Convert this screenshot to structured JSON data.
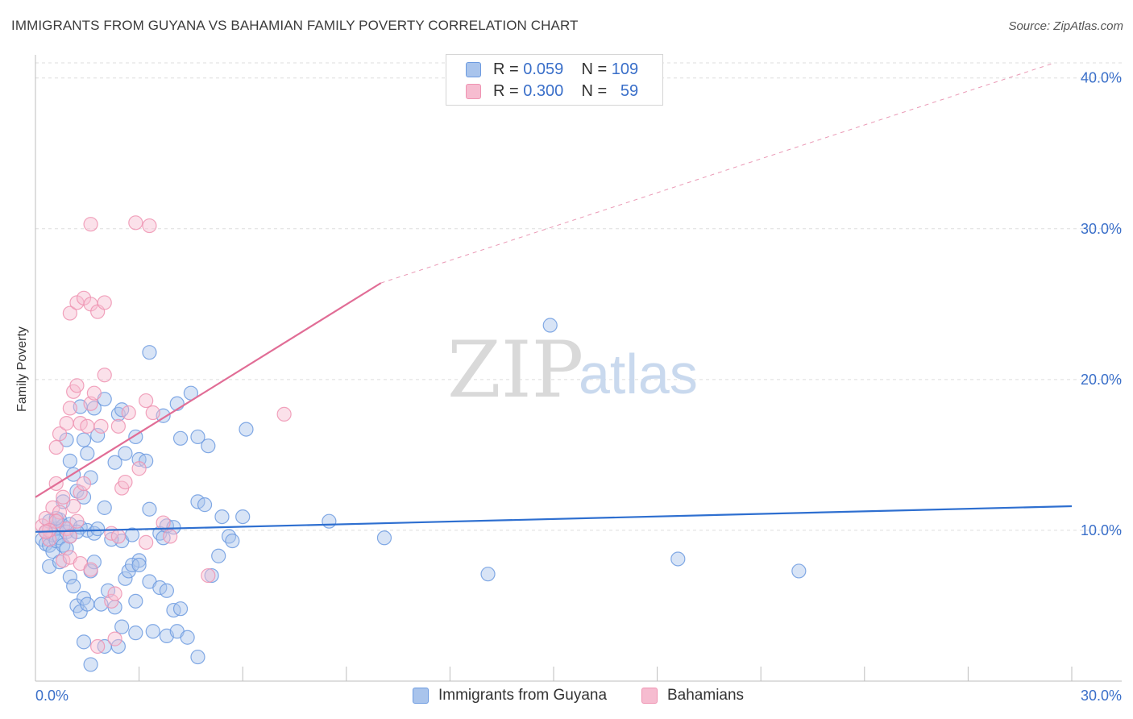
{
  "header": {
    "title": "IMMIGRANTS FROM GUYANA VS BAHAMIAN FAMILY POVERTY CORRELATION CHART",
    "source": "Source: ZipAtlas.com"
  },
  "watermark": {
    "zip": "ZIP",
    "atlas": "atlas"
  },
  "legend": {
    "rows": [
      {
        "r_label": "R =",
        "r_value": "0.059",
        "n_label": "N =",
        "n_value": "109",
        "color": "#a9c4ec"
      },
      {
        "r_label": "R =",
        "r_value": "0.300",
        "n_label": "N =",
        "n_value": "59",
        "color": "#f6bcd0"
      }
    ]
  },
  "bottom_legend": [
    {
      "label": "Immigrants from Guyana",
      "color": "#a9c4ec"
    },
    {
      "label": "Bahamians",
      "color": "#f6bcd0"
    }
  ],
  "chart_data": {
    "type": "scatter",
    "title": "IMMIGRANTS FROM GUYANA VS BAHAMIAN FAMILY POVERTY CORRELATION CHART",
    "xlabel": "",
    "ylabel": "Family Poverty",
    "xlim": [
      0,
      30
    ],
    "ylim": [
      0,
      41
    ],
    "x_tick_labels": [
      "0.0%",
      "30.0%"
    ],
    "y_ticks": [
      10,
      20,
      30,
      40
    ],
    "y_tick_labels": [
      "10.0%",
      "20.0%",
      "30.0%",
      "40.0%"
    ],
    "grid": true,
    "legend_position": "top-center",
    "series": [
      {
        "name": "Immigrants from Guyana",
        "color": "#6d9be0",
        "fill": "#a9c4ec",
        "trend": {
          "x": [
            0,
            30
          ],
          "y": [
            9.9,
            11.6
          ],
          "color": "#2e6fd0",
          "dashed_extension": false
        },
        "points": [
          [
            0.2,
            9.4
          ],
          [
            0.3,
            9.9
          ],
          [
            0.3,
            9.1
          ],
          [
            0.4,
            10.6
          ],
          [
            0.4,
            9.0
          ],
          [
            0.5,
            8.6
          ],
          [
            0.5,
            9.7
          ],
          [
            0.6,
            10.1
          ],
          [
            0.6,
            9.3
          ],
          [
            0.7,
            9.5
          ],
          [
            0.7,
            10.7
          ],
          [
            0.8,
            10.3
          ],
          [
            0.8,
            9.0
          ],
          [
            0.9,
            9.9
          ],
          [
            0.9,
            8.8
          ],
          [
            1.0,
            10.4
          ],
          [
            1.0,
            9.6
          ],
          [
            0.4,
            7.6
          ],
          [
            0.7,
            7.9
          ],
          [
            0.8,
            11.9
          ],
          [
            0.9,
            16.0
          ],
          [
            1.0,
            14.6
          ],
          [
            1.1,
            13.7
          ],
          [
            1.2,
            12.6
          ],
          [
            1.4,
            12.2
          ],
          [
            1.3,
            18.2
          ],
          [
            1.4,
            16.0
          ],
          [
            1.5,
            15.1
          ],
          [
            1.6,
            13.5
          ],
          [
            1.7,
            18.1
          ],
          [
            1.8,
            16.3
          ],
          [
            2.0,
            18.7
          ],
          [
            2.3,
            14.5
          ],
          [
            2.4,
            17.7
          ],
          [
            2.5,
            18.0
          ],
          [
            2.6,
            15.1
          ],
          [
            2.9,
            16.2
          ],
          [
            3.0,
            14.7
          ],
          [
            3.2,
            14.6
          ],
          [
            3.3,
            21.8
          ],
          [
            3.7,
            17.6
          ],
          [
            4.1,
            18.4
          ],
          [
            4.2,
            16.1
          ],
          [
            4.5,
            19.1
          ],
          [
            4.7,
            16.2
          ],
          [
            5.0,
            15.6
          ],
          [
            6.1,
            16.7
          ],
          [
            1.3,
            10.2
          ],
          [
            1.5,
            10.0
          ],
          [
            1.7,
            9.8
          ],
          [
            2.0,
            11.5
          ],
          [
            2.5,
            9.3
          ],
          [
            2.8,
            9.7
          ],
          [
            3.0,
            8.0
          ],
          [
            3.3,
            11.4
          ],
          [
            3.6,
            9.8
          ],
          [
            3.7,
            9.5
          ],
          [
            3.8,
            10.3
          ],
          [
            4.0,
            10.2
          ],
          [
            4.7,
            11.9
          ],
          [
            4.9,
            11.7
          ],
          [
            5.4,
            10.9
          ],
          [
            5.6,
            9.6
          ],
          [
            5.7,
            9.3
          ],
          [
            6.0,
            10.9
          ],
          [
            1.0,
            6.9
          ],
          [
            1.1,
            6.3
          ],
          [
            1.2,
            5.0
          ],
          [
            1.3,
            4.6
          ],
          [
            1.4,
            5.5
          ],
          [
            1.5,
            5.1
          ],
          [
            1.6,
            7.3
          ],
          [
            1.7,
            7.9
          ],
          [
            1.9,
            5.1
          ],
          [
            2.1,
            6.0
          ],
          [
            2.3,
            4.9
          ],
          [
            2.6,
            6.8
          ],
          [
            2.7,
            7.3
          ],
          [
            2.9,
            5.3
          ],
          [
            2.8,
            7.7
          ],
          [
            3.0,
            7.7
          ],
          [
            3.3,
            6.6
          ],
          [
            3.6,
            6.2
          ],
          [
            3.8,
            6.0
          ],
          [
            4.0,
            4.7
          ],
          [
            4.2,
            4.8
          ],
          [
            5.1,
            7.0
          ],
          [
            2.5,
            3.6
          ],
          [
            2.9,
            3.2
          ],
          [
            3.4,
            3.3
          ],
          [
            3.8,
            3.0
          ],
          [
            4.1,
            3.3
          ],
          [
            4.4,
            2.9
          ],
          [
            4.7,
            1.6
          ],
          [
            2.0,
            2.3
          ],
          [
            2.4,
            2.3
          ],
          [
            1.4,
            2.6
          ],
          [
            1.6,
            1.1
          ],
          [
            5.3,
            8.3
          ],
          [
            8.5,
            10.6
          ],
          [
            10.1,
            9.5
          ],
          [
            13.1,
            7.1
          ],
          [
            14.9,
            23.6
          ],
          [
            18.6,
            8.1
          ],
          [
            22.1,
            7.3
          ],
          [
            0.6,
            10.8
          ],
          [
            1.2,
            9.9
          ],
          [
            1.8,
            10.1
          ],
          [
            2.2,
            9.4
          ]
        ]
      },
      {
        "name": "Bahamians",
        "color": "#ef93b2",
        "fill": "#f6bcd0",
        "trend": {
          "x": [
            0,
            10,
            29.5
          ],
          "y": [
            12.2,
            26.4,
            41.0
          ],
          "color": "#e16d96",
          "dashed_after_x": 10
        },
        "points": [
          [
            0.2,
            10.3
          ],
          [
            0.3,
            10.8
          ],
          [
            0.4,
            9.4
          ],
          [
            0.5,
            11.5
          ],
          [
            0.6,
            13.1
          ],
          [
            0.7,
            11.2
          ],
          [
            0.8,
            12.2
          ],
          [
            0.9,
            10.1
          ],
          [
            1.0,
            9.6
          ],
          [
            1.1,
            11.6
          ],
          [
            1.2,
            10.6
          ],
          [
            1.3,
            12.5
          ],
          [
            0.6,
            15.5
          ],
          [
            0.7,
            16.4
          ],
          [
            0.9,
            17.1
          ],
          [
            1.0,
            18.1
          ],
          [
            1.1,
            19.2
          ],
          [
            1.2,
            19.6
          ],
          [
            1.3,
            17.1
          ],
          [
            1.5,
            16.9
          ],
          [
            1.6,
            18.4
          ],
          [
            1.7,
            19.1
          ],
          [
            1.9,
            16.9
          ],
          [
            2.0,
            20.3
          ],
          [
            2.4,
            16.9
          ],
          [
            2.7,
            17.8
          ],
          [
            3.2,
            18.6
          ],
          [
            3.4,
            17.8
          ],
          [
            1.0,
            24.4
          ],
          [
            1.2,
            25.1
          ],
          [
            1.4,
            25.4
          ],
          [
            1.6,
            25.0
          ],
          [
            1.8,
            24.5
          ],
          [
            2.0,
            25.1
          ],
          [
            1.6,
            30.3
          ],
          [
            2.9,
            30.4
          ],
          [
            3.3,
            30.2
          ],
          [
            7.2,
            17.7
          ],
          [
            2.5,
            12.8
          ],
          [
            2.6,
            13.2
          ],
          [
            3.0,
            14.1
          ],
          [
            2.2,
            9.8
          ],
          [
            2.4,
            9.6
          ],
          [
            3.2,
            9.2
          ],
          [
            3.7,
            10.5
          ],
          [
            3.9,
            9.6
          ],
          [
            0.6,
            10.6
          ],
          [
            0.4,
            10.0
          ],
          [
            0.3,
            9.9
          ],
          [
            0.8,
            8.0
          ],
          [
            1.0,
            8.2
          ],
          [
            1.3,
            7.8
          ],
          [
            1.6,
            7.4
          ],
          [
            2.2,
            5.3
          ],
          [
            2.3,
            5.8
          ],
          [
            1.8,
            2.3
          ],
          [
            2.3,
            2.8
          ],
          [
            5.0,
            7.0
          ],
          [
            1.4,
            13.1
          ]
        ]
      }
    ]
  }
}
